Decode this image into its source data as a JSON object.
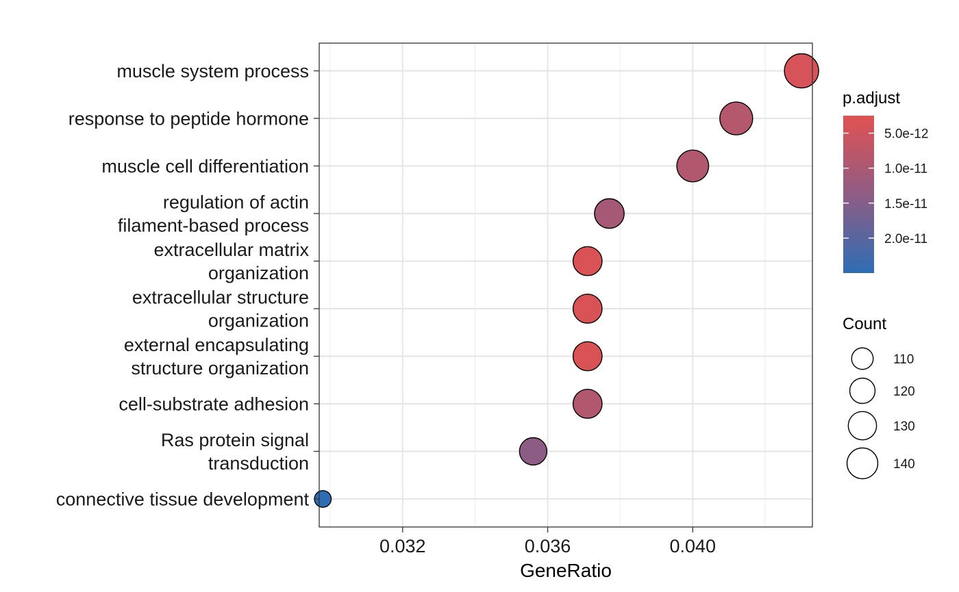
{
  "chart_data": {
    "type": "scatter",
    "xlabel": "GeneRatio",
    "ylabel": "",
    "xlim": [
      0.0297,
      0.0433
    ],
    "x_ticks": [
      0.032,
      0.036,
      0.04
    ],
    "x_tick_labels": [
      "0.032",
      "0.036",
      "0.040"
    ],
    "grid": true,
    "points": [
      {
        "term": [
          "muscle system process"
        ],
        "x": 0.043,
        "count": 143,
        "p_adjust": 4e-12
      },
      {
        "term": [
          "response to peptide hormone"
        ],
        "x": 0.0412,
        "count": 137,
        "p_adjust": 8.5e-12
      },
      {
        "term": [
          "muscle cell differentiation"
        ],
        "x": 0.04,
        "count": 133,
        "p_adjust": 9e-12
      },
      {
        "term": [
          "regulation of actin",
          "filament-based process"
        ],
        "x": 0.0377,
        "count": 125,
        "p_adjust": 1.05e-11
      },
      {
        "term": [
          "extracellular matrix",
          "organization"
        ],
        "x": 0.0371,
        "count": 123,
        "p_adjust": 3.5e-12
      },
      {
        "term": [
          "extracellular structure",
          "organization"
        ],
        "x": 0.0371,
        "count": 123,
        "p_adjust": 3.5e-12
      },
      {
        "term": [
          "external encapsulating",
          "structure organization"
        ],
        "x": 0.0371,
        "count": 123,
        "p_adjust": 3.5e-12
      },
      {
        "term": [
          "cell-substrate adhesion"
        ],
        "x": 0.0371,
        "count": 123,
        "p_adjust": 9e-12
      },
      {
        "term": [
          "Ras protein signal",
          "transduction"
        ],
        "x": 0.0356,
        "count": 118,
        "p_adjust": 1.4e-11
      },
      {
        "term": [
          "connective tissue development"
        ],
        "x": 0.0298,
        "count": 99,
        "p_adjust": 2.5e-11
      }
    ],
    "color_legend": {
      "title": "p.adjust",
      "range": [
        2.5e-12,
        2.5e-11
      ],
      "high_color": "#E05252",
      "mid_color": "#8F5C84",
      "low_color": "#2E6DB4",
      "ticks": [
        5e-12,
        1e-11,
        1.5e-11,
        2e-11
      ],
      "tick_labels": [
        "5.0e-12",
        "1.0e-11",
        "1.5e-11",
        "2.0e-11"
      ]
    },
    "size_legend": {
      "title": "Count",
      "values": [
        110,
        120,
        130,
        140
      ],
      "labels": [
        "110",
        "120",
        "130",
        "140"
      ]
    }
  }
}
